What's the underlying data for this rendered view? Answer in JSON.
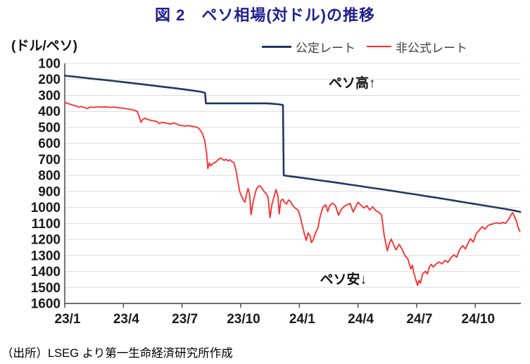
{
  "title": "図 2　ペソ相場(対ドル)の推移",
  "y_axis_unit": "(ドル/ペソ)",
  "source_note": "（出所）LSEG より第一生命経済研究所作成",
  "colors": {
    "title": "#20208F",
    "official": "#1F3864",
    "unofficial": "#FF2A2A",
    "grid": "#DCDCDC",
    "axis": "#3F3F3F",
    "tick_text": "#1A1A1A",
    "annotation_text": "#111111"
  },
  "chart_data": {
    "type": "line",
    "title": "図 2　ペソ相場(対ドル)の推移",
    "ylabel": "(ドル/ペソ)",
    "y_axis": {
      "min": 100,
      "max": 1600,
      "inverted_direction": "higher value = weaker peso (plotted downward)",
      "ticks": [
        100,
        200,
        300,
        400,
        500,
        600,
        700,
        800,
        900,
        1000,
        1100,
        1200,
        1300,
        1400,
        1500,
        1600
      ]
    },
    "x_axis": {
      "range_months": [
        0,
        23.33
      ],
      "ticks": [
        {
          "label": "23/1",
          "m": 0
        },
        {
          "label": "23/4",
          "m": 3
        },
        {
          "label": "23/7",
          "m": 6
        },
        {
          "label": "23/10",
          "m": 9
        },
        {
          "label": "24/1",
          "m": 12
        },
        {
          "label": "24/4",
          "m": 15
        },
        {
          "label": "24/7",
          "m": 18
        },
        {
          "label": "24/10",
          "m": 21
        }
      ]
    },
    "annotations": [
      {
        "text": "ペソ高↑",
        "m": 14.7,
        "value": 218
      },
      {
        "text": "ペソ安↓",
        "m": 14.25,
        "value": 1445
      }
    ],
    "series": [
      {
        "name": "公定レート",
        "color": "#1F3864",
        "stroke_width": 2.6,
        "points": [
          [
            0,
            177
          ],
          [
            0.5,
            183
          ],
          [
            1,
            190
          ],
          [
            1.5,
            197
          ],
          [
            2,
            203
          ],
          [
            2.5,
            210
          ],
          [
            3,
            217
          ],
          [
            3.5,
            224
          ],
          [
            4,
            231
          ],
          [
            4.5,
            238
          ],
          [
            5,
            246
          ],
          [
            5.5,
            253
          ],
          [
            6,
            261
          ],
          [
            6.5,
            269
          ],
          [
            7,
            278
          ],
          [
            7.18,
            285
          ],
          [
            7.22,
            350
          ],
          [
            8,
            350
          ],
          [
            9,
            350
          ],
          [
            10,
            350
          ],
          [
            10.3,
            350
          ],
          [
            10.6,
            352
          ],
          [
            10.9,
            355
          ],
          [
            11.16,
            360
          ],
          [
            11.2,
            800
          ],
          [
            11.5,
            805
          ],
          [
            12,
            813
          ],
          [
            12.5,
            821
          ],
          [
            13,
            830
          ],
          [
            13.5,
            838
          ],
          [
            14,
            847
          ],
          [
            14.5,
            856
          ],
          [
            15,
            865
          ],
          [
            15.5,
            874
          ],
          [
            16,
            883
          ],
          [
            16.5,
            892
          ],
          [
            17,
            901
          ],
          [
            17.5,
            911
          ],
          [
            18,
            920
          ],
          [
            18.5,
            930
          ],
          [
            19,
            939
          ],
          [
            19.5,
            949
          ],
          [
            20,
            959
          ],
          [
            20.5,
            969
          ],
          [
            21,
            979
          ],
          [
            21.5,
            989
          ],
          [
            22,
            999
          ],
          [
            22.5,
            1009
          ],
          [
            23,
            1020
          ],
          [
            23.3,
            1028
          ]
        ]
      },
      {
        "name": "非公式レート",
        "color": "#FF2A2A",
        "stroke_width": 1.8,
        "points": [
          [
            0,
            345
          ],
          [
            0.15,
            350
          ],
          [
            0.3,
            357
          ],
          [
            0.45,
            362
          ],
          [
            0.6,
            368
          ],
          [
            0.75,
            374
          ],
          [
            0.85,
            369
          ],
          [
            1,
            376
          ],
          [
            1.15,
            382
          ],
          [
            1.3,
            373
          ],
          [
            1.5,
            375
          ],
          [
            1.7,
            371
          ],
          [
            1.9,
            374
          ],
          [
            2.1,
            372
          ],
          [
            2.3,
            375
          ],
          [
            2.5,
            373
          ],
          [
            2.7,
            376
          ],
          [
            2.9,
            379
          ],
          [
            3.1,
            382
          ],
          [
            3.3,
            387
          ],
          [
            3.5,
            391
          ],
          [
            3.7,
            399
          ],
          [
            3.8,
            428
          ],
          [
            3.9,
            468
          ],
          [
            4,
            449
          ],
          [
            4.1,
            443
          ],
          [
            4.25,
            450
          ],
          [
            4.4,
            456
          ],
          [
            4.55,
            459
          ],
          [
            4.7,
            463
          ],
          [
            4.85,
            477
          ],
          [
            4.95,
            468
          ],
          [
            5.1,
            471
          ],
          [
            5.25,
            475
          ],
          [
            5.4,
            480
          ],
          [
            5.55,
            473
          ],
          [
            5.7,
            477
          ],
          [
            5.85,
            486
          ],
          [
            6,
            489
          ],
          [
            6.15,
            492
          ],
          [
            6.3,
            489
          ],
          [
            6.45,
            492
          ],
          [
            6.6,
            495
          ],
          [
            6.75,
            498
          ],
          [
            6.85,
            506
          ],
          [
            6.95,
            519
          ],
          [
            7.05,
            540
          ],
          [
            7.15,
            578
          ],
          [
            7.25,
            655
          ],
          [
            7.32,
            757
          ],
          [
            7.4,
            722
          ],
          [
            7.47,
            740
          ],
          [
            7.55,
            728
          ],
          [
            7.65,
            721
          ],
          [
            7.75,
            713
          ],
          [
            7.85,
            702
          ],
          [
            7.95,
            691
          ],
          [
            8.05,
            697
          ],
          [
            8.15,
            706
          ],
          [
            8.25,
            699
          ],
          [
            8.35,
            709
          ],
          [
            8.45,
            703
          ],
          [
            8.55,
            713
          ],
          [
            8.65,
            719
          ],
          [
            8.75,
            762
          ],
          [
            8.85,
            833
          ],
          [
            8.95,
            902
          ],
          [
            9.05,
            932
          ],
          [
            9.15,
            957
          ],
          [
            9.22,
            968
          ],
          [
            9.3,
            916
          ],
          [
            9.38,
            882
          ],
          [
            9.45,
            917
          ],
          [
            9.53,
            1046
          ],
          [
            9.62,
            976
          ],
          [
            9.7,
            933
          ],
          [
            9.8,
            886
          ],
          [
            9.9,
            869
          ],
          [
            10,
            866
          ],
          [
            10.1,
            883
          ],
          [
            10.2,
            901
          ],
          [
            10.3,
            913
          ],
          [
            10.4,
            937
          ],
          [
            10.5,
            1064
          ],
          [
            10.6,
            981
          ],
          [
            10.7,
            936
          ],
          [
            10.8,
            889
          ],
          [
            10.9,
            926
          ],
          [
            10.97,
            1041
          ],
          [
            11.05,
            959
          ],
          [
            11.15,
            949
          ],
          [
            11.25,
            969
          ],
          [
            11.35,
            979
          ],
          [
            11.45,
            953
          ],
          [
            11.55,
            963
          ],
          [
            11.65,
            986
          ],
          [
            11.75,
            1001
          ],
          [
            11.85,
            1009
          ],
          [
            11.95,
            1019
          ],
          [
            12.05,
            1061
          ],
          [
            12.15,
            1113
          ],
          [
            12.25,
            1161
          ],
          [
            12.35,
            1206
          ],
          [
            12.45,
            1159
          ],
          [
            12.55,
            1179
          ],
          [
            12.62,
            1220
          ],
          [
            12.72,
            1199
          ],
          [
            12.85,
            1153
          ],
          [
            12.95,
            1129
          ],
          [
            13.05,
            1063
          ],
          [
            13.2,
            1001
          ],
          [
            13.35,
            983
          ],
          [
            13.45,
            1026
          ],
          [
            13.55,
            989
          ],
          [
            13.7,
            973
          ],
          [
            13.85,
            989
          ],
          [
            14,
            1049
          ],
          [
            14.15,
            1011
          ],
          [
            14.3,
            993
          ],
          [
            14.45,
            983
          ],
          [
            14.6,
            976
          ],
          [
            14.75,
            1029
          ],
          [
            14.9,
            991
          ],
          [
            15,
            968
          ],
          [
            15.15,
            986
          ],
          [
            15.3,
            1003
          ],
          [
            15.45,
            989
          ],
          [
            15.6,
            1016
          ],
          [
            15.75,
            996
          ],
          [
            15.9,
            1019
          ],
          [
            16.05,
            1029
          ],
          [
            16.2,
            1046
          ],
          [
            16.35,
            1182
          ],
          [
            16.5,
            1271
          ],
          [
            16.6,
            1226
          ],
          [
            16.7,
            1198
          ],
          [
            16.85,
            1241
          ],
          [
            16.95,
            1265
          ],
          [
            17.1,
            1231
          ],
          [
            17.25,
            1259
          ],
          [
            17.4,
            1301
          ],
          [
            17.55,
            1323
          ],
          [
            17.7,
            1384
          ],
          [
            17.78,
            1361
          ],
          [
            17.85,
            1406
          ],
          [
            17.95,
            1449
          ],
          [
            18.05,
            1487
          ],
          [
            18.12,
            1456
          ],
          [
            18.2,
            1473
          ],
          [
            18.3,
            1416
          ],
          [
            18.45,
            1399
          ],
          [
            18.55,
            1416
          ],
          [
            18.65,
            1371
          ],
          [
            18.75,
            1356
          ],
          [
            18.85,
            1373
          ],
          [
            19,
            1353
          ],
          [
            19.15,
            1341
          ],
          [
            19.3,
            1353
          ],
          [
            19.45,
            1331
          ],
          [
            19.6,
            1343
          ],
          [
            19.75,
            1316
          ],
          [
            19.9,
            1296
          ],
          [
            20.05,
            1311
          ],
          [
            20.2,
            1263
          ],
          [
            20.35,
            1239
          ],
          [
            20.5,
            1259
          ],
          [
            20.6,
            1231
          ],
          [
            20.75,
            1196
          ],
          [
            20.9,
            1216
          ],
          [
            21.05,
            1163
          ],
          [
            21.2,
            1143
          ],
          [
            21.35,
            1121
          ],
          [
            21.5,
            1136
          ],
          [
            21.65,
            1113
          ],
          [
            21.8,
            1106
          ],
          [
            21.95,
            1101
          ],
          [
            22.1,
            1096
          ],
          [
            22.25,
            1101
          ],
          [
            22.4,
            1094
          ],
          [
            22.55,
            1099
          ],
          [
            22.7,
            1076
          ],
          [
            22.85,
            1041
          ],
          [
            22.92,
            1033
          ],
          [
            23,
            1056
          ],
          [
            23.1,
            1083
          ],
          [
            23.18,
            1121
          ],
          [
            23.28,
            1150
          ]
        ]
      }
    ]
  }
}
